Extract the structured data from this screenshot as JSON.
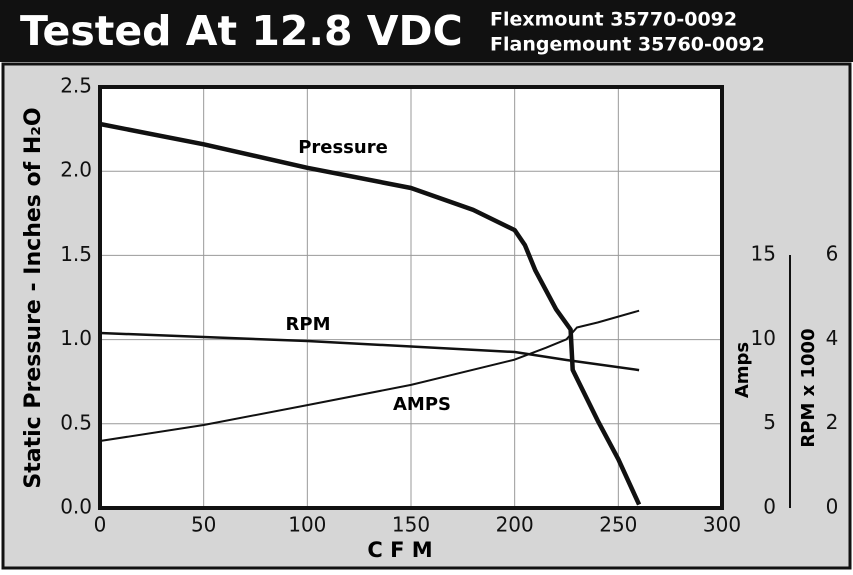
{
  "chart_data": {
    "type": "line",
    "title": "Tested At 12.8 VDC",
    "subtitle": [
      "Flexmount 35770-0092",
      "Flangemount 35760-0092"
    ],
    "xlabel": "C F M",
    "ylabel": "Static Pressure - Inches of H₂O",
    "y2label": "Amps",
    "y3label": "RPM x 1000",
    "xlim": [
      0,
      300
    ],
    "xticks": [
      0,
      50,
      100,
      150,
      200,
      250,
      300
    ],
    "ylim": [
      0,
      2.5
    ],
    "yticks": [
      {
        "value": 0,
        "label": "0.0"
      },
      0.5,
      {
        "value": 1,
        "label": "1.0"
      },
      1.5,
      {
        "value": 2,
        "label": "2.0"
      },
      2.5
    ],
    "y2lim": [
      0,
      15
    ],
    "y2ticks": [
      0,
      5,
      10,
      15
    ],
    "y3lim": [
      0,
      6
    ],
    "y3ticks": [
      0,
      2,
      4,
      6
    ],
    "grid": true,
    "series": [
      {
        "name": "Pressure",
        "color": "#111111",
        "axis": "y",
        "x": [
          0,
          50,
          100,
          150,
          180,
          190,
          200,
          205,
          210,
          220,
          227,
          228,
          240,
          250,
          260
        ],
        "values": [
          2.28,
          2.16,
          2.02,
          1.9,
          1.77,
          1.71,
          1.65,
          1.56,
          1.41,
          1.18,
          1.06,
          0.82,
          0.52,
          0.29,
          0.02
        ]
      },
      {
        "name": "RPM",
        "color": "#111111",
        "axis": "y3",
        "x": [
          0,
          100,
          200,
          225,
          260
        ],
        "values": [
          4.15,
          3.96,
          3.7,
          3.51,
          3.27
        ]
      },
      {
        "name": "AMPS",
        "color": "#111111",
        "axis": "y2",
        "x": [
          0,
          50,
          100,
          150,
          200,
          215,
          225,
          230,
          240,
          260
        ],
        "values": [
          3.97,
          4.92,
          6.1,
          7.3,
          8.8,
          9.5,
          10.0,
          10.7,
          11.0,
          11.7
        ]
      }
    ]
  }
}
